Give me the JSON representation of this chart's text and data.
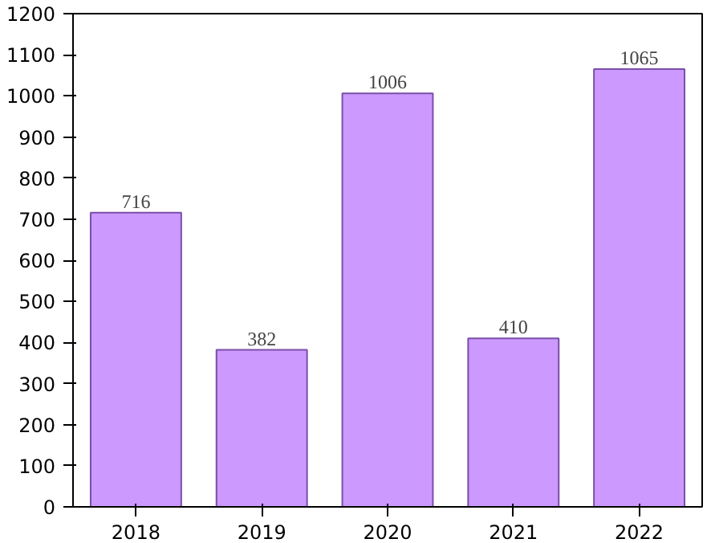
{
  "chart_data": {
    "type": "bar",
    "categories": [
      "2018",
      "2019",
      "2020",
      "2021",
      "2022"
    ],
    "values": [
      716,
      382,
      1006,
      410,
      1065
    ],
    "color": "#cc99ff",
    "ylim": [
      0,
      1200
    ],
    "yticks": [
      0,
      100,
      200,
      300,
      400,
      500,
      600,
      700,
      800,
      900,
      1000,
      1100,
      1200
    ],
    "data_labels": true,
    "grid": false
  }
}
